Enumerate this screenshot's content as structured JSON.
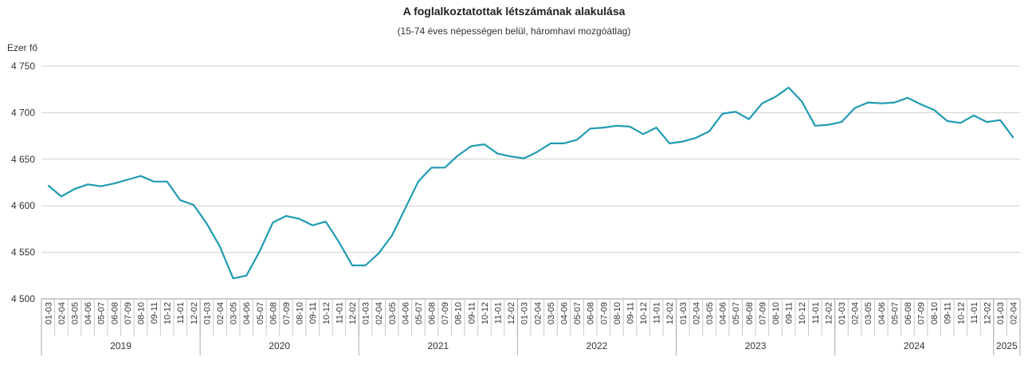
{
  "chart_data": {
    "type": "line",
    "title": "A foglalkoztatottak létszámának alakulása",
    "subtitle": "(15-74 éves népességen belül, háromhavi mozgóátlag)",
    "ylabel": "Ezer fő",
    "ylim": [
      4500,
      4750
    ],
    "yticks": [
      4500,
      4550,
      4600,
      4650,
      4700,
      4750
    ],
    "ytick_labels": [
      "4 500",
      "4 550",
      "4 600",
      "4 650",
      "4 700",
      "4 750"
    ],
    "grid": true,
    "legend": "none",
    "line_color": "#1f9bb2",
    "years": [
      {
        "label": "2019",
        "count": 12
      },
      {
        "label": "2020",
        "count": 12
      },
      {
        "label": "2021",
        "count": 12
      },
      {
        "label": "2022",
        "count": 12
      },
      {
        "label": "2023",
        "count": 12
      },
      {
        "label": "2024",
        "count": 12
      },
      {
        "label": "2025",
        "count": 2
      }
    ],
    "categories": [
      "01-03",
      "02-04",
      "03-05",
      "04-06",
      "05-07",
      "06-08",
      "07-09",
      "08-10",
      "09-11",
      "10-12",
      "11-01",
      "12-02",
      "01-03",
      "02-04",
      "03-05",
      "04-06",
      "05-07",
      "06-08",
      "07-09",
      "08-10",
      "09-11",
      "10-12",
      "11-01",
      "12-02",
      "01-03",
      "02-04",
      "03-05",
      "04-06",
      "05-07",
      "06-08",
      "07-09",
      "08-10",
      "09-11",
      "10-12",
      "11-01",
      "12-02",
      "01-03",
      "02-04",
      "03-05",
      "04-06",
      "05-07",
      "06-08",
      "07-09",
      "08-10",
      "09-11",
      "10-12",
      "11-01",
      "12-02",
      "01-03",
      "02-04",
      "03-05",
      "04-06",
      "05-07",
      "06-08",
      "07-09",
      "08-10",
      "09-11",
      "10-12",
      "11-01",
      "12-02",
      "01-03",
      "02-04",
      "03-05",
      "04-06",
      "05-07",
      "06-08",
      "07-09",
      "08-10",
      "09-11",
      "10-12",
      "11-01",
      "12-02",
      "01-03",
      "02-04"
    ],
    "values": [
      4622,
      4610,
      4618,
      4623,
      4621,
      4624,
      4628,
      4632,
      4626,
      4626,
      4606,
      4601,
      4581,
      4556,
      4522,
      4525,
      4551,
      4582,
      4589,
      4586,
      4579,
      4583,
      4561,
      4536,
      4536,
      4549,
      4568,
      4597,
      4626,
      4641,
      4641,
      4654,
      4664,
      4666,
      4656,
      4653,
      4651,
      4658,
      4667,
      4667,
      4671,
      4683,
      4684,
      4686,
      4685,
      4677,
      4684,
      4667,
      4669,
      4673,
      4680,
      4699,
      4701,
      4693,
      4710,
      4717,
      4727,
      4712,
      4686,
      4687,
      4690,
      4705,
      4711,
      4710,
      4711,
      4716,
      4709,
      4703,
      4691,
      4689,
      4697,
      4690,
      4692,
      4673
    ]
  }
}
